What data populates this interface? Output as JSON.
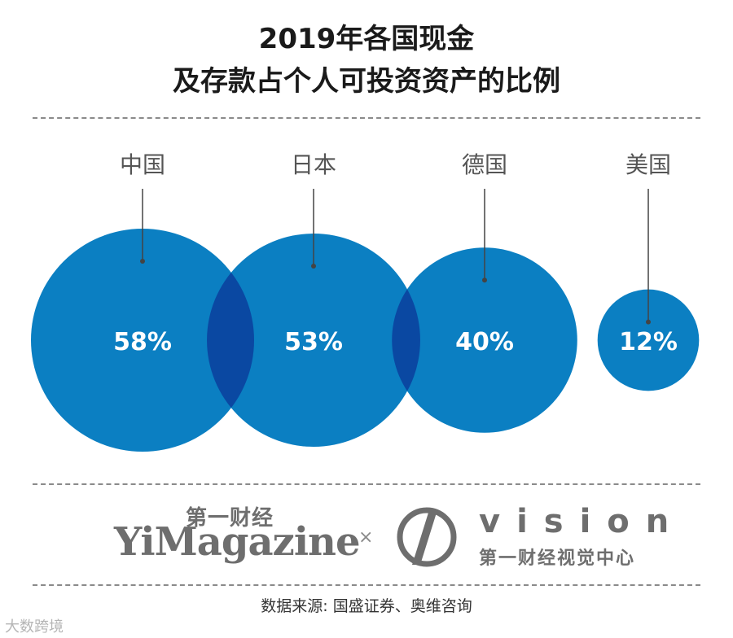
{
  "chart_data": {
    "type": "bubble",
    "title_lines": [
      "2019年各国现金",
      "及存款占个人可投资资产的比例"
    ],
    "unit": "%",
    "categories": [
      "中国",
      "日本",
      "德国",
      "美国"
    ],
    "values": [
      58,
      53,
      40,
      12
    ],
    "value_labels": [
      "58%",
      "53%",
      "40%",
      "12%"
    ],
    "colors": {
      "bubble": "#0b7fc2",
      "overlap": "#0a48a2",
      "label": "#ffffff",
      "pointer": "#444444"
    }
  },
  "branding": {
    "yimagazine_cn": "第一财经",
    "yimagazine_en": "YiMagazine",
    "cross": "×",
    "vision_word": "vision",
    "vision_cn": "第一财经视觉中心"
  },
  "source": "数据来源: 国盛证券、奥维咨询",
  "watermark": "大数跨境"
}
